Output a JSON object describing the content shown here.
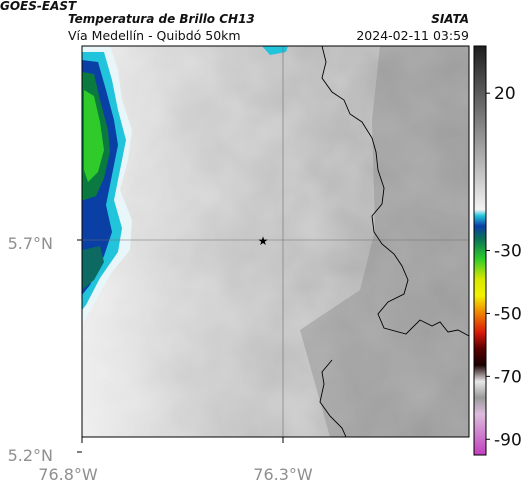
{
  "header": {
    "satellite": "GOES-EAST",
    "product": "Temperatura de Brillo CH13",
    "region": "Vía Medellín - Quibdó 50km",
    "organization": "SIATA",
    "timestamp": "2024-02-11 03:59"
  },
  "map": {
    "y_ticks": [
      "5.7°N",
      "5.2°N"
    ],
    "x_ticks": [
      "76.8°W",
      "76.3°W"
    ],
    "marker": "star",
    "gridlines": true
  },
  "colorbar": {
    "ticks": [
      "20",
      "-30",
      "-50",
      "-70",
      "-90"
    ],
    "tick_values": [
      20,
      -30,
      -50,
      -70,
      -90
    ],
    "range": [
      -95,
      35
    ],
    "colors": {
      "warm_top": "#1e1e1e",
      "warm_bottom": "#ffffff",
      "cyan": "#22c4dc",
      "blue": "#0a3fa6",
      "green": "#2ecb2a",
      "yellow": "#f2f200",
      "orange": "#f08a00",
      "red": "#d91a0a",
      "dark_red": "#5a0000",
      "magenta": "#c23fc0"
    }
  }
}
